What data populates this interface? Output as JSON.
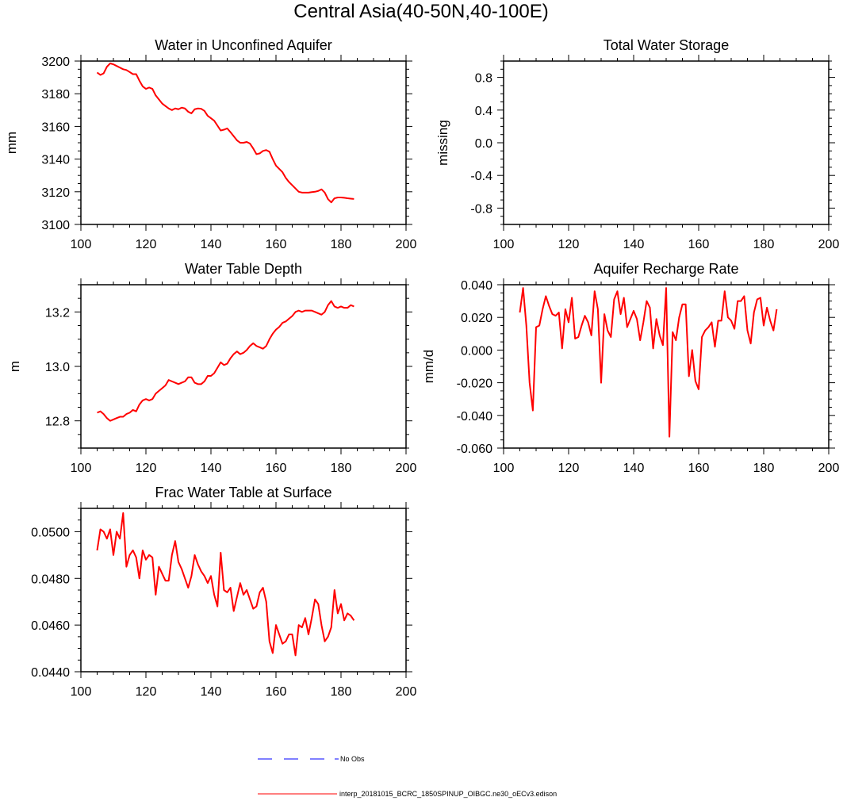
{
  "figure": {
    "title": "Central Asia(40-50N,40-100E)",
    "legend": [
      {
        "label": "No Obs",
        "color": "#0000ff",
        "style": "dashed"
      },
      {
        "label": "interp_20181015_BCRC_1850SPINUP_OIBGC.ne30_oECv3.edison",
        "color": "#ff0000",
        "style": "solid"
      }
    ]
  },
  "chart_data": [
    {
      "type": "line",
      "title": "Water in Unconfined Aquifer",
      "ylabel": "mm",
      "xlim": [
        100,
        200
      ],
      "ylim": [
        3100,
        3200
      ],
      "xticks": [
        100,
        120,
        140,
        160,
        180,
        200
      ],
      "xtick_labels": [
        "100",
        "120",
        "140",
        "160",
        "180",
        "200"
      ],
      "yticks": [
        3100,
        3120,
        3140,
        3160,
        3180,
        3200
      ],
      "ytick_labels": [
        "3100",
        "3120",
        "3140",
        "3160",
        "3180",
        "3200"
      ],
      "series": [
        {
          "color": "#ff0000",
          "x": [
            105,
            106,
            107,
            108,
            109,
            110,
            111,
            112,
            113,
            114,
            115,
            116,
            117,
            118,
            119,
            120,
            121,
            122,
            123,
            124,
            125,
            126,
            127,
            128,
            129,
            130,
            131,
            132,
            133,
            134,
            135,
            136,
            137,
            138,
            139,
            140,
            141,
            142,
            143,
            144,
            145,
            146,
            147,
            148,
            149,
            150,
            151,
            152,
            153,
            154,
            155,
            156,
            157,
            158,
            159,
            160,
            161,
            162,
            163,
            164,
            165,
            166,
            167,
            168,
            169,
            170,
            171,
            172,
            173,
            174,
            175,
            176,
            177,
            178,
            179,
            180,
            181,
            182,
            183,
            184
          ],
          "y": [
            3193,
            3191.5,
            3192.5,
            3196.5,
            3198.6,
            3198,
            3197,
            3196,
            3195,
            3194.5,
            3193.3,
            3192,
            3192,
            3188,
            3184.5,
            3183,
            3183.8,
            3183,
            3179,
            3176.5,
            3174,
            3172.5,
            3171,
            3170,
            3171,
            3170.5,
            3171.5,
            3171,
            3169,
            3168,
            3170.5,
            3171,
            3170.8,
            3169.5,
            3166.5,
            3165,
            3163.5,
            3160.5,
            3157.5,
            3158,
            3158.8,
            3156.5,
            3154,
            3151.5,
            3150,
            3150,
            3150.5,
            3149.5,
            3146.5,
            3143,
            3143.5,
            3145,
            3145.5,
            3144.5,
            3140,
            3136,
            3134,
            3132,
            3128.5,
            3126,
            3124,
            3122,
            3120,
            3119.5,
            3119.5,
            3119.5,
            3119.8,
            3120,
            3120.5,
            3121.5,
            3119.5,
            3115.5,
            3113.5,
            3116,
            3116.5,
            3116.5,
            3116.3,
            3116,
            3115.8,
            3115.6
          ]
        }
      ]
    },
    {
      "type": "line",
      "title": "Total Water Storage",
      "ylabel": "missing",
      "xlim": [
        100,
        200
      ],
      "ylim": [
        -1,
        1
      ],
      "xticks": [
        100,
        120,
        140,
        160,
        180,
        200
      ],
      "xtick_labels": [
        "100",
        "120",
        "140",
        "160",
        "180",
        "200"
      ],
      "yticks": [
        -0.8,
        -0.4,
        0,
        0.4,
        0.8
      ],
      "ytick_labels": [
        "-0.8",
        "-0.4",
        "0.0",
        "0.4",
        "0.8"
      ],
      "series": []
    },
    {
      "type": "line",
      "title": "Water Table Depth",
      "ylabel": "m",
      "xlim": [
        100,
        200
      ],
      "ylim": [
        12.7,
        13.3
      ],
      "xticks": [
        100,
        120,
        140,
        160,
        180,
        200
      ],
      "xtick_labels": [
        "100",
        "120",
        "140",
        "160",
        "180",
        "200"
      ],
      "yticks": [
        12.8,
        13.0,
        13.2
      ],
      "ytick_labels": [
        "12.8",
        "13.0",
        "13.2"
      ],
      "series": [
        {
          "color": "#ff0000",
          "x": [
            105,
            106,
            107,
            108,
            109,
            110,
            111,
            112,
            113,
            114,
            115,
            116,
            117,
            118,
            119,
            120,
            121,
            122,
            123,
            124,
            125,
            126,
            127,
            128,
            129,
            130,
            131,
            132,
            133,
            134,
            135,
            136,
            137,
            138,
            139,
            140,
            141,
            142,
            143,
            144,
            145,
            146,
            147,
            148,
            149,
            150,
            151,
            152,
            153,
            154,
            155,
            156,
            157,
            158,
            159,
            160,
            161,
            162,
            163,
            164,
            165,
            166,
            167,
            168,
            169,
            170,
            171,
            172,
            173,
            174,
            175,
            176,
            177,
            178,
            179,
            180,
            181,
            182,
            183,
            184
          ],
          "y": [
            12.83,
            12.835,
            12.825,
            12.81,
            12.8,
            12.805,
            12.81,
            12.815,
            12.815,
            12.825,
            12.83,
            12.84,
            12.835,
            12.86,
            12.875,
            12.88,
            12.875,
            12.88,
            12.9,
            12.91,
            12.92,
            12.93,
            12.95,
            12.945,
            12.94,
            12.935,
            12.94,
            12.945,
            12.96,
            12.96,
            12.94,
            12.935,
            12.935,
            12.945,
            12.965,
            12.965,
            12.975,
            12.995,
            13.015,
            13.005,
            13.01,
            13.03,
            13.045,
            13.055,
            13.045,
            13.05,
            13.06,
            13.075,
            13.085,
            13.075,
            13.07,
            13.065,
            13.075,
            13.1,
            13.12,
            13.135,
            13.145,
            13.16,
            13.165,
            13.175,
            13.185,
            13.2,
            13.205,
            13.2,
            13.205,
            13.205,
            13.205,
            13.2,
            13.195,
            13.19,
            13.2,
            13.225,
            13.24,
            13.22,
            13.215,
            13.22,
            13.215,
            13.215,
            13.225,
            13.22
          ]
        }
      ]
    },
    {
      "type": "line",
      "title": "Aquifer Recharge Rate",
      "ylabel": "mm/d",
      "xlim": [
        100,
        200
      ],
      "ylim": [
        -0.06,
        0.04
      ],
      "xticks": [
        100,
        120,
        140,
        160,
        180,
        200
      ],
      "xtick_labels": [
        "100",
        "120",
        "140",
        "160",
        "180",
        "200"
      ],
      "yticks": [
        -0.06,
        -0.04,
        -0.02,
        0,
        0.02,
        0.04
      ],
      "ytick_labels": [
        "-0.060",
        "-0.040",
        "-0.020",
        "0.000",
        "0.020",
        "0.040"
      ],
      "series": [
        {
          "color": "#ff0000",
          "x": [
            105,
            106,
            107,
            108,
            109,
            110,
            111,
            112,
            113,
            114,
            115,
            116,
            117,
            118,
            119,
            120,
            121,
            122,
            123,
            124,
            125,
            126,
            127,
            128,
            129,
            130,
            131,
            132,
            133,
            134,
            135,
            136,
            137,
            138,
            139,
            140,
            141,
            142,
            143,
            144,
            145,
            146,
            147,
            148,
            149,
            150,
            151,
            152,
            153,
            154,
            155,
            156,
            157,
            158,
            159,
            160,
            161,
            162,
            163,
            164,
            165,
            166,
            167,
            168,
            169,
            170,
            171,
            172,
            173,
            174,
            175,
            176,
            177,
            178,
            179,
            180,
            181,
            182,
            183,
            184
          ],
          "y": [
            0.023,
            0.038,
            0.015,
            -0.02,
            -0.037,
            0.014,
            0.015,
            0.025,
            0.033,
            0.027,
            0.022,
            0.021,
            0.023,
            0.001,
            0.025,
            0.017,
            0.032,
            0.007,
            0.008,
            0.015,
            0.021,
            0.017,
            0.009,
            0.036,
            0.025,
            -0.02,
            0.022,
            0.012,
            0.008,
            0.031,
            0.036,
            0.022,
            0.032,
            0.014,
            0.019,
            0.024,
            0.019,
            0.006,
            0.017,
            0.03,
            0.026,
            0.001,
            0.019,
            0.009,
            0.003,
            0.038,
            -0.053,
            0.011,
            0.006,
            0.02,
            0.028,
            0.028,
            -0.016,
            0.0,
            -0.019,
            -0.024,
            0.008,
            0.012,
            0.014,
            0.017,
            0.002,
            0.018,
            0.018,
            0.036,
            0.02,
            0.018,
            0.013,
            0.03,
            0.03,
            0.033,
            0.012,
            0.004,
            0.023,
            0.031,
            0.032,
            0.015,
            0.026,
            0.018,
            0.012,
            0.025
          ]
        }
      ]
    },
    {
      "type": "line",
      "title": "Frac Water Table at Surface",
      "ylabel": "",
      "xlim": [
        100,
        200
      ],
      "ylim": [
        0.044,
        0.051
      ],
      "xticks": [
        100,
        120,
        140,
        160,
        180,
        200
      ],
      "xtick_labels": [
        "100",
        "120",
        "140",
        "160",
        "180",
        "200"
      ],
      "yticks": [
        0.044,
        0.046,
        0.048,
        0.05
      ],
      "ytick_labels": [
        "0.0440",
        "0.0460",
        "0.0480",
        "0.0500"
      ],
      "series": [
        {
          "color": "#ff0000",
          "x": [
            105,
            106,
            107,
            108,
            109,
            110,
            111,
            112,
            113,
            114,
            115,
            116,
            117,
            118,
            119,
            120,
            121,
            122,
            123,
            124,
            125,
            126,
            127,
            128,
            129,
            130,
            131,
            132,
            133,
            134,
            135,
            136,
            137,
            138,
            139,
            140,
            141,
            142,
            143,
            144,
            145,
            146,
            147,
            148,
            149,
            150,
            151,
            152,
            153,
            154,
            155,
            156,
            157,
            158,
            159,
            160,
            161,
            162,
            163,
            164,
            165,
            166,
            167,
            168,
            169,
            170,
            171,
            172,
            173,
            174,
            175,
            176,
            177,
            178,
            179,
            180,
            181,
            182,
            183,
            184
          ],
          "y": [
            0.0492,
            0.0501,
            0.05,
            0.0497,
            0.0501,
            0.049,
            0.05,
            0.0497,
            0.0508,
            0.0485,
            0.049,
            0.0492,
            0.0489,
            0.048,
            0.0492,
            0.0488,
            0.049,
            0.0489,
            0.0473,
            0.0485,
            0.0482,
            0.0479,
            0.0479,
            0.049,
            0.0496,
            0.0487,
            0.0484,
            0.048,
            0.0476,
            0.0481,
            0.049,
            0.0486,
            0.0483,
            0.0481,
            0.0478,
            0.0481,
            0.0473,
            0.0468,
            0.0491,
            0.0475,
            0.0474,
            0.0476,
            0.0466,
            0.0472,
            0.0478,
            0.0473,
            0.0475,
            0.0471,
            0.0467,
            0.0468,
            0.0474,
            0.0476,
            0.047,
            0.0453,
            0.0448,
            0.046,
            0.0456,
            0.0452,
            0.0453,
            0.0456,
            0.0456,
            0.0447,
            0.046,
            0.0459,
            0.0463,
            0.0456,
            0.0463,
            0.0471,
            0.0469,
            0.046,
            0.0453,
            0.0455,
            0.0459,
            0.0475,
            0.0465,
            0.0469,
            0.0462,
            0.0465,
            0.0464,
            0.0462
          ]
        }
      ]
    }
  ]
}
